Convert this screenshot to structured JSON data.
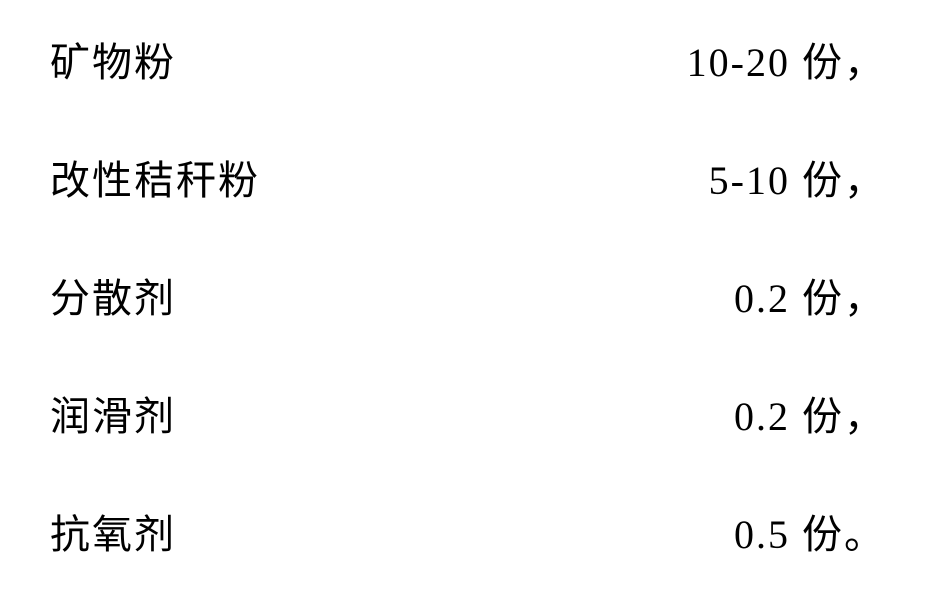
{
  "rows": [
    {
      "label": "矿物粉",
      "value": "10-20 份，"
    },
    {
      "label": "改性秸秆粉",
      "value": "5-10 份，"
    },
    {
      "label": "分散剂",
      "value": "0.2 份，"
    },
    {
      "label": "润滑剂",
      "value": "0.2 份，"
    },
    {
      "label": "抗氧剂",
      "value": "0.5 份。"
    }
  ],
  "styling": {
    "background_color": "#ffffff",
    "text_color": "#000000",
    "font_family": "SimSun",
    "font_size": 40,
    "row_spacing": 60,
    "letter_spacing": 2
  }
}
